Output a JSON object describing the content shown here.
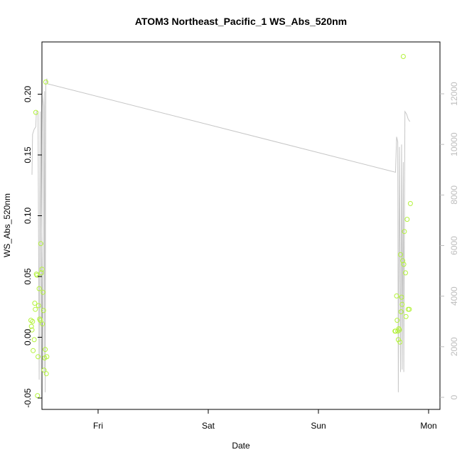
{
  "chart_data": {
    "type": "scatter",
    "title": "ATOM3 Northeast_Pacific_1 WS_Abs_520nm",
    "xlabel": "Date",
    "ylabel": "WS_Abs_520nm",
    "x_ticks": [
      "Fri",
      "Sat",
      "Sun",
      "Mon"
    ],
    "y_ticks": [
      -0.05,
      0.0,
      0.05,
      0.1,
      0.15,
      0.2
    ],
    "y_tick_labels": [
      "-0.05",
      "0.00",
      "0.05",
      "0.10",
      "0.15",
      "0.20"
    ],
    "ylim": [
      -0.06,
      0.24
    ],
    "y2_ticks": [
      0,
      2000,
      4000,
      6000,
      8000,
      10000,
      12000
    ],
    "y2_tick_labels": [
      "0",
      "2000",
      "4000",
      "6000",
      "8000",
      "10000",
      "12000"
    ],
    "y2lim": [
      -500,
      13000
    ],
    "colors": {
      "points": "#b3f23a",
      "line": "#c6c6c6",
      "right_axis": "#bdbdbd"
    },
    "series": [
      {
        "kind": "points",
        "values_by_day": [
          [
            -0.61,
            0.014
          ],
          [
            -0.605,
            0.009
          ],
          [
            -0.6,
            0.006
          ],
          [
            -0.595,
            0.013
          ],
          [
            -0.59,
            -0.011
          ],
          [
            -0.58,
            -0.002
          ],
          [
            -0.575,
            0.028
          ],
          [
            -0.57,
            0.023
          ],
          [
            -0.565,
            0.185
          ],
          [
            -0.56,
            0.052
          ],
          [
            -0.555,
            0.051
          ],
          [
            -0.55,
            -0.048
          ],
          [
            -0.545,
            -0.016
          ],
          [
            -0.54,
            0.026
          ],
          [
            -0.535,
            0.04
          ],
          [
            -0.53,
            0.015
          ],
          [
            -0.525,
            0.014
          ],
          [
            -0.52,
            0.077
          ],
          [
            -0.515,
            0.053
          ],
          [
            -0.51,
            0.056
          ],
          [
            -0.505,
            0.011
          ],
          [
            -0.5,
            0.037
          ],
          [
            -0.495,
            0.022
          ],
          [
            -0.49,
            -0.027
          ],
          [
            -0.485,
            -0.017
          ],
          [
            -0.48,
            -0.01
          ],
          [
            -0.475,
            0.21
          ],
          [
            -0.47,
            -0.03
          ],
          [
            -0.465,
            -0.016
          ],
          [
            2.695,
            0.005
          ],
          [
            2.7,
            0.005
          ],
          [
            2.71,
            0.034
          ],
          [
            2.715,
            0.014
          ],
          [
            2.72,
            0.005
          ],
          [
            2.725,
            -0.002
          ],
          [
            2.73,
            0.007
          ],
          [
            2.735,
            0.006
          ],
          [
            2.74,
            -0.004
          ],
          [
            2.745,
            0.068
          ],
          [
            2.75,
            0.021
          ],
          [
            2.755,
            0.033
          ],
          [
            2.76,
            0.027
          ],
          [
            2.765,
            0.063
          ],
          [
            2.77,
            0.231
          ],
          [
            2.775,
            0.06
          ],
          [
            2.78,
            0.087
          ],
          [
            2.79,
            0.053
          ],
          [
            2.795,
            0.017
          ],
          [
            2.805,
            0.097
          ],
          [
            2.815,
            0.023
          ],
          [
            2.825,
            0.023
          ],
          [
            2.835,
            0.11
          ]
        ]
      },
      {
        "kind": "line",
        "axis": "right",
        "values_by_day": [
          [
            -0.6,
            8800
          ],
          [
            -0.595,
            10400
          ],
          [
            -0.58,
            10600
          ],
          [
            -0.565,
            10700
          ],
          [
            -0.56,
            11300
          ],
          [
            -0.545,
            11300
          ],
          [
            -0.535,
            700
          ],
          [
            -0.525,
            11300
          ],
          [
            -0.515,
            300
          ],
          [
            -0.505,
            12000
          ],
          [
            -0.495,
            11500
          ],
          [
            -0.49,
            1000
          ],
          [
            -0.485,
            12100
          ],
          [
            -0.48,
            200
          ],
          [
            -0.475,
            12400
          ],
          [
            -0.465,
            12600
          ],
          [
            -0.46,
            12400
          ],
          [
            2.7,
            8900
          ],
          [
            2.71,
            10300
          ],
          [
            2.72,
            10100
          ],
          [
            2.725,
            200
          ],
          [
            2.735,
            9900
          ],
          [
            2.745,
            1000
          ],
          [
            2.755,
            10000
          ],
          [
            2.76,
            1100
          ],
          [
            2.77,
            9300
          ],
          [
            2.775,
            1000
          ],
          [
            2.785,
            11300
          ],
          [
            2.8,
            11200
          ],
          [
            2.815,
            11000
          ],
          [
            2.83,
            10900
          ]
        ]
      }
    ]
  }
}
